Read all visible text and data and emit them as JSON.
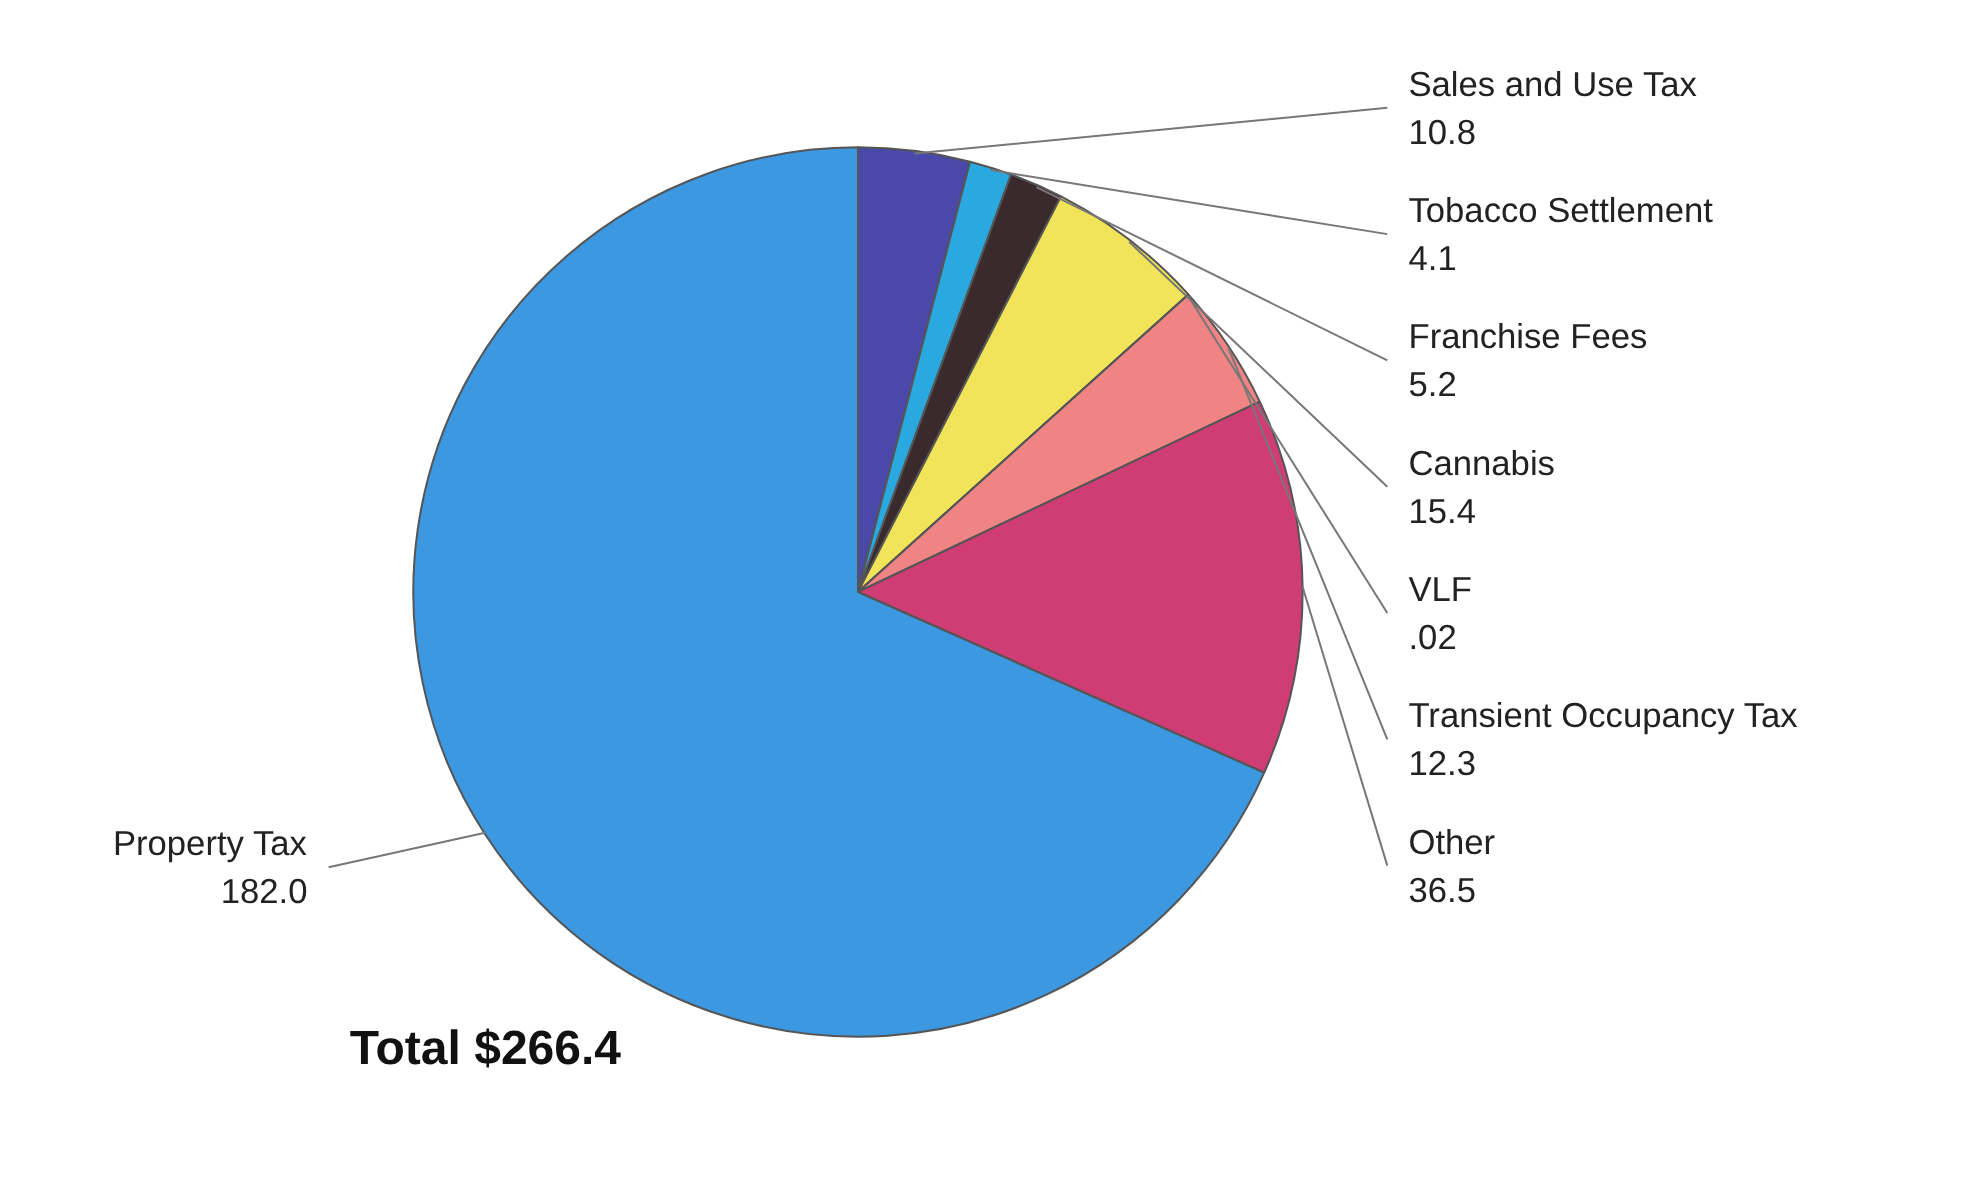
{
  "chart_data": {
    "type": "pie",
    "categories": [
      "Sales and Use Tax",
      "Tobacco Settlement",
      "Franchise Fees",
      "Cannabis",
      "VLF",
      "Transient Occupancy Tax",
      "Other",
      "Property Tax"
    ],
    "values": [
      10.8,
      4.1,
      5.2,
      15.4,
      0.02,
      12.3,
      36.5,
      182.0
    ],
    "value_labels": [
      "10.8",
      "4.1",
      "5.2",
      "15.4",
      ".02",
      "12.3",
      "36.5",
      "182.0"
    ],
    "colors": [
      "#4a48a8",
      "#2aa8e0",
      "#3a2a2e",
      "#f2e458",
      "#3aa040",
      "#f08484",
      "#d03c74",
      "#3c98e0"
    ],
    "annotations": [
      "Total $266.4"
    ]
  }
}
